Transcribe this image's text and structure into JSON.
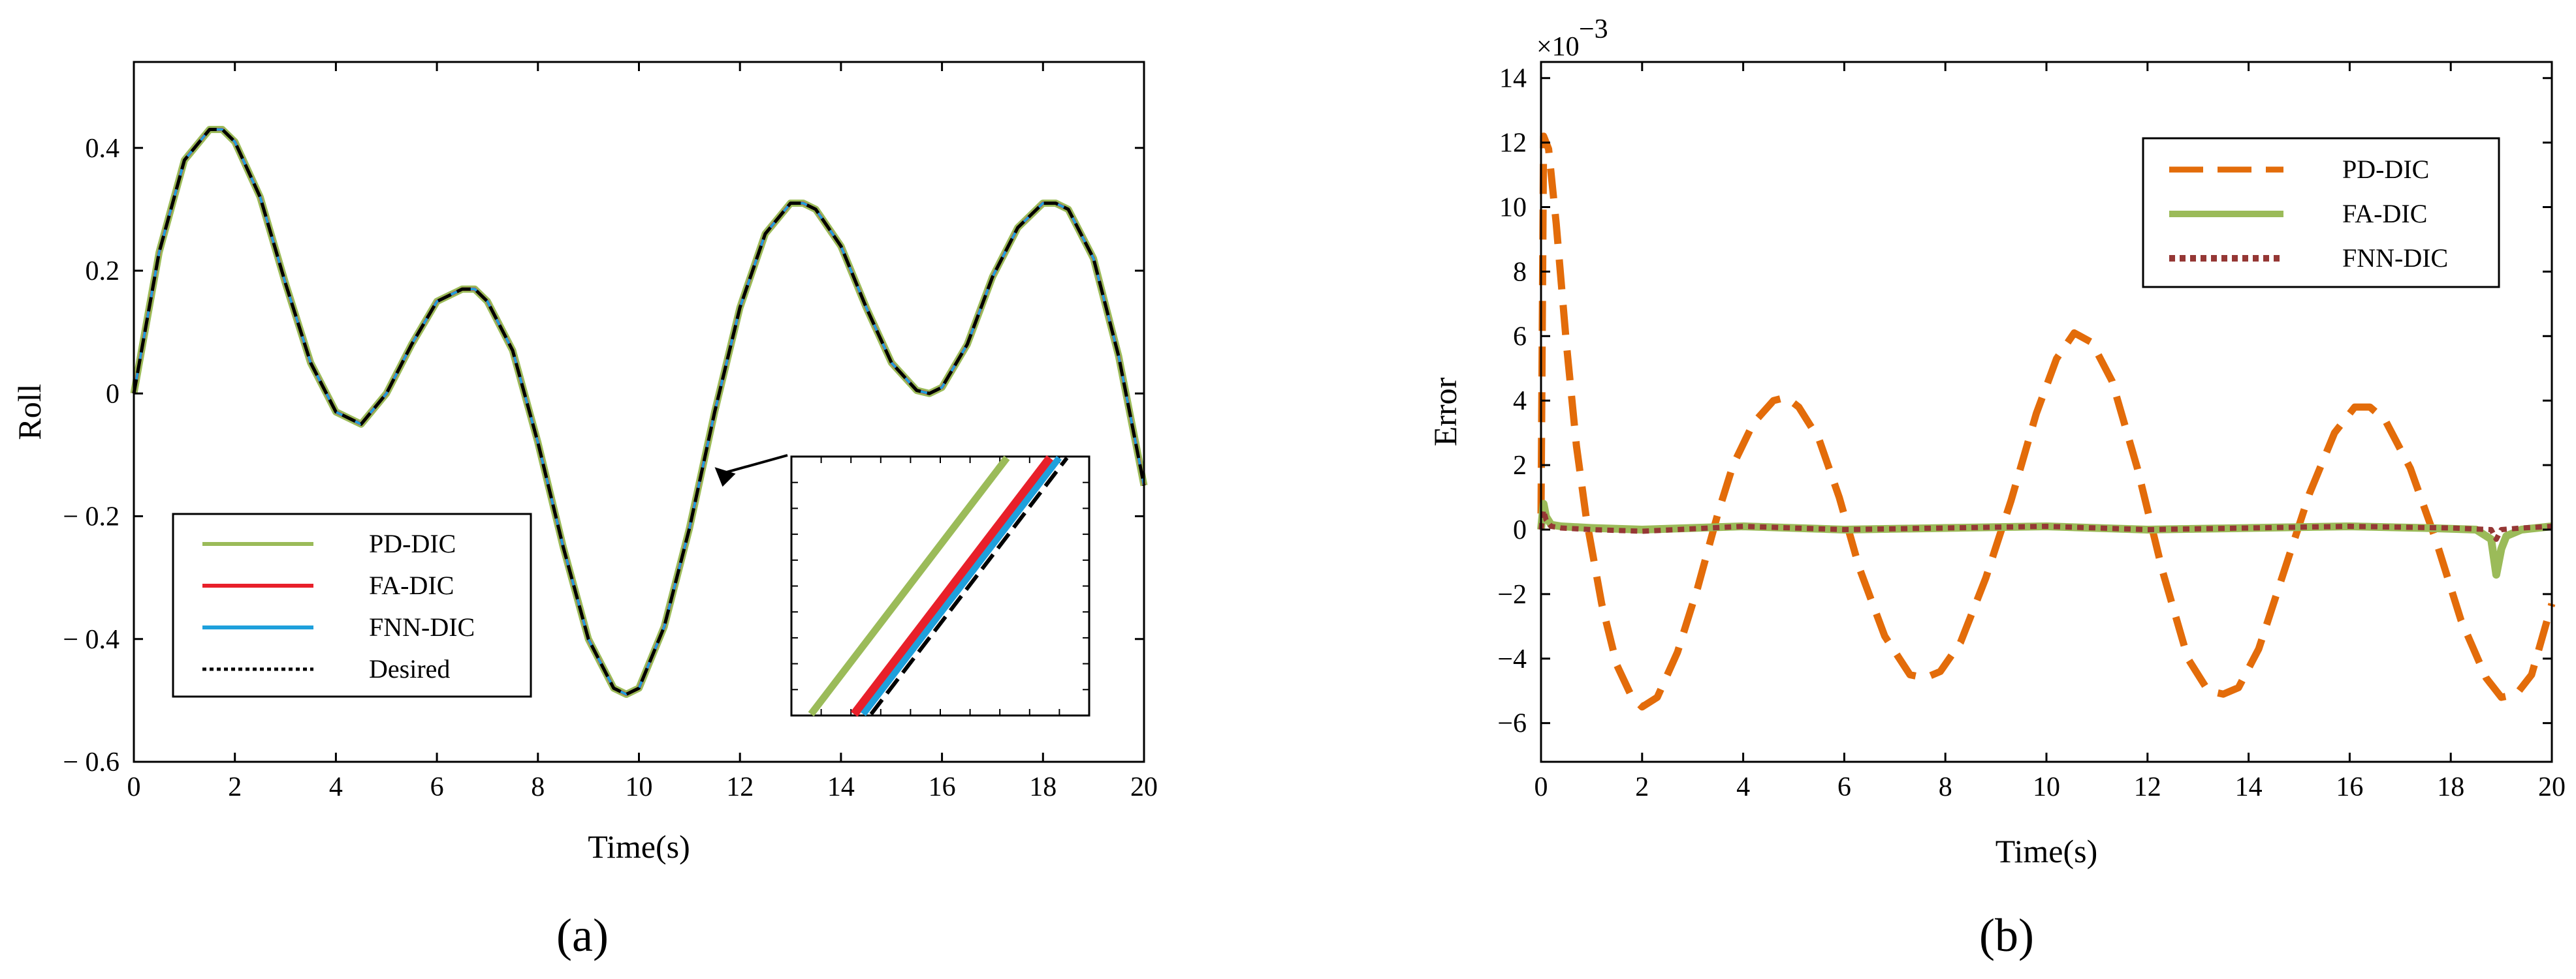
{
  "colors": {
    "pd_a": "#9bbb59",
    "fa_a": "#e8202a",
    "fnn_a": "#1ea0dc",
    "desired": "#000000",
    "pd_b": "#e36c0a",
    "fa_b": "#9bbb59",
    "fnn_b": "#953735"
  },
  "chart_data": [
    {
      "type": "line",
      "panel_label": "(a)",
      "xlabel": "Time(s)",
      "ylabel": "Roll",
      "xlim": [
        0,
        20
      ],
      "ylim": [
        -0.6,
        0.54
      ],
      "xticks": [
        0,
        2,
        4,
        6,
        8,
        10,
        12,
        14,
        16,
        18,
        20
      ],
      "yticks": [
        0.4,
        0.2,
        0,
        -0.2,
        -0.4,
        -0.6
      ],
      "ytick_labels": [
        "0.4",
        "0.2",
        "0",
        "− 0.2",
        "− 0.4",
        "− 0.6"
      ],
      "legend_position": "bottom-left",
      "x": [
        0,
        0.5,
        1,
        1.5,
        1.75,
        2,
        2.5,
        3,
        3.5,
        4,
        4.5,
        5,
        5.5,
        6,
        6.5,
        6.75,
        7,
        7.5,
        8,
        8.5,
        9,
        9.5,
        9.75,
        10,
        10.5,
        11,
        11.5,
        12,
        12.5,
        13,
        13.25,
        13.5,
        14,
        14.5,
        15,
        15.5,
        15.75,
        16,
        16.5,
        17,
        17.5,
        18,
        18.25,
        18.5,
        19,
        19.5,
        20
      ],
      "series": [
        {
          "name": "PD-DIC",
          "values": [
            0.0,
            0.23,
            0.38,
            0.43,
            0.43,
            0.41,
            0.32,
            0.18,
            0.05,
            -0.03,
            -0.05,
            0.0,
            0.08,
            0.15,
            0.17,
            0.17,
            0.15,
            0.07,
            -0.08,
            -0.25,
            -0.4,
            -0.48,
            -0.49,
            -0.48,
            -0.38,
            -0.22,
            -0.03,
            0.14,
            0.26,
            0.31,
            0.31,
            0.3,
            0.24,
            0.14,
            0.05,
            0.005,
            0.0,
            0.01,
            0.08,
            0.19,
            0.27,
            0.31,
            0.31,
            0.3,
            0.22,
            0.06,
            -0.15
          ]
        },
        {
          "name": "FA-DIC",
          "values": [
            0.0,
            0.23,
            0.38,
            0.43,
            0.43,
            0.41,
            0.32,
            0.18,
            0.05,
            -0.03,
            -0.05,
            0.0,
            0.08,
            0.15,
            0.17,
            0.17,
            0.15,
            0.07,
            -0.08,
            -0.25,
            -0.4,
            -0.48,
            -0.49,
            -0.48,
            -0.38,
            -0.22,
            -0.03,
            0.14,
            0.26,
            0.31,
            0.31,
            0.3,
            0.24,
            0.14,
            0.05,
            0.005,
            0.0,
            0.01,
            0.08,
            0.19,
            0.27,
            0.31,
            0.31,
            0.3,
            0.22,
            0.06,
            -0.15
          ]
        },
        {
          "name": "FNN-DIC",
          "values": [
            0.0,
            0.23,
            0.38,
            0.43,
            0.43,
            0.41,
            0.32,
            0.18,
            0.05,
            -0.03,
            -0.05,
            0.0,
            0.08,
            0.15,
            0.17,
            0.17,
            0.15,
            0.07,
            -0.08,
            -0.25,
            -0.4,
            -0.48,
            -0.49,
            -0.48,
            -0.38,
            -0.22,
            -0.03,
            0.14,
            0.26,
            0.31,
            0.31,
            0.3,
            0.24,
            0.14,
            0.05,
            0.005,
            0.0,
            0.01,
            0.08,
            0.19,
            0.27,
            0.31,
            0.31,
            0.3,
            0.22,
            0.06,
            -0.15
          ]
        },
        {
          "name": "Desired",
          "values": [
            0.0,
            0.23,
            0.38,
            0.43,
            0.43,
            0.41,
            0.32,
            0.18,
            0.05,
            -0.03,
            -0.05,
            0.0,
            0.08,
            0.15,
            0.17,
            0.17,
            0.15,
            0.07,
            -0.08,
            -0.25,
            -0.4,
            -0.48,
            -0.49,
            -0.48,
            -0.38,
            -0.22,
            -0.03,
            0.14,
            0.26,
            0.31,
            0.31,
            0.3,
            0.24,
            0.14,
            0.05,
            0.005,
            0.0,
            0.01,
            0.08,
            0.19,
            0.27,
            0.31,
            0.31,
            0.3,
            0.22,
            0.06,
            -0.15
          ]
        }
      ],
      "annotation": "arrow pointing to t≈11.5s, Roll≈-0.12 with zoomed inset showing the four curves offset in order PD-DIC, FA-DIC, FNN-DIC, Desired"
    },
    {
      "type": "line",
      "panel_label": "(b)",
      "xlabel": "Time(s)",
      "ylabel": "Error",
      "scale_label": "×10",
      "scale_exponent": "−3",
      "xlim": [
        0,
        20
      ],
      "ylim": [
        -7.2,
        14.5
      ],
      "xticks": [
        0,
        2,
        4,
        6,
        8,
        10,
        12,
        14,
        16,
        18,
        20
      ],
      "yticks": [
        14,
        12,
        10,
        8,
        6,
        4,
        2,
        0,
        -2,
        -4,
        -6
      ],
      "ytick_labels": [
        "14",
        "12",
        "10",
        "8",
        "6",
        "4",
        "2",
        "0",
        "−2",
        "−4",
        "−6"
      ],
      "legend_position": "top-right",
      "series": [
        {
          "name": "PD-DIC",
          "x": [
            0,
            0.05,
            0.15,
            0.3,
            0.5,
            0.7,
            0.9,
            1.2,
            1.5,
            1.8,
            2.0,
            2.3,
            2.7,
            3.1,
            3.5,
            3.8,
            4.2,
            4.6,
            4.85,
            5.1,
            5.5,
            5.9,
            6.3,
            6.8,
            7.3,
            7.6,
            7.9,
            8.3,
            8.8,
            9.3,
            9.8,
            10.2,
            10.55,
            10.9,
            11.3,
            11.8,
            12.3,
            12.8,
            13.2,
            13.5,
            13.8,
            14.2,
            14.7,
            15.2,
            15.7,
            16.1,
            16.4,
            16.7,
            17.2,
            17.7,
            18.2,
            18.7,
            19.0,
            19.3,
            19.6,
            20
          ],
          "values": [
            0.5,
            12.2,
            11.8,
            9.5,
            5.8,
            2.6,
            0.3,
            -2.3,
            -4.2,
            -5.2,
            -5.5,
            -5.2,
            -3.8,
            -1.8,
            0.5,
            2.0,
            3.3,
            4.0,
            4.1,
            3.8,
            2.8,
            1.0,
            -1.2,
            -3.3,
            -4.5,
            -4.6,
            -4.4,
            -3.5,
            -1.5,
            0.9,
            3.6,
            5.3,
            6.1,
            5.8,
            4.6,
            1.9,
            -1.3,
            -4.0,
            -5.0,
            -5.1,
            -4.9,
            -3.7,
            -1.3,
            1.1,
            3.0,
            3.8,
            3.8,
            3.4,
            1.9,
            -0.3,
            -2.8,
            -4.6,
            -5.2,
            -5.1,
            -4.5,
            -2.3
          ]
        },
        {
          "name": "FA-DIC",
          "x": [
            0,
            0.05,
            0.1,
            0.2,
            0.4,
            1.0,
            2.0,
            4.0,
            6.0,
            8.0,
            10.0,
            12.0,
            14.0,
            16.0,
            17.5,
            18.5,
            18.8,
            18.9,
            19.0,
            19.1,
            19.4,
            20
          ],
          "values": [
            0,
            0.8,
            0.4,
            0.15,
            0.1,
            0.05,
            0.0,
            0.1,
            0.0,
            0.05,
            0.1,
            0.0,
            0.05,
            0.1,
            0.05,
            0.0,
            -0.3,
            -1.4,
            -0.6,
            -0.2,
            0.0,
            0.1
          ]
        },
        {
          "name": "FNN-DIC",
          "x": [
            0,
            0.05,
            0.1,
            0.2,
            0.4,
            1.0,
            2.0,
            4.0,
            6.0,
            8.0,
            10.0,
            12.0,
            14.0,
            16.0,
            18.0,
            18.8,
            18.9,
            19.0,
            19.4,
            20
          ],
          "values": [
            0,
            0.6,
            0.3,
            0.1,
            0.05,
            0.0,
            -0.05,
            0.1,
            0.0,
            0.05,
            0.1,
            0.0,
            0.05,
            0.1,
            0.05,
            0.0,
            -0.3,
            0.0,
            0.05,
            0.1
          ]
        }
      ]
    }
  ]
}
